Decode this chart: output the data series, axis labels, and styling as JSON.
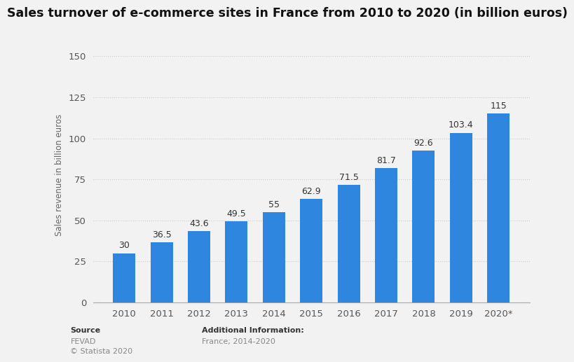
{
  "title": "Sales turnover of e-commerce sites in France from 2010 to 2020 (in billion euros)",
  "ylabel": "Sales revenue in billion euros",
  "categories": [
    "2010",
    "2011",
    "2012",
    "2013",
    "2014",
    "2015",
    "2016",
    "2017",
    "2018",
    "2019",
    "2020*"
  ],
  "values": [
    30,
    36.5,
    43.6,
    49.5,
    55,
    62.9,
    71.5,
    81.7,
    92.6,
    103.4,
    115
  ],
  "bar_color": "#2e86de",
  "background_color": "#f2f2f2",
  "plot_background_color": "#f2f2f2",
  "ylim": [
    0,
    155
  ],
  "yticks": [
    0,
    25,
    50,
    75,
    100,
    125,
    150
  ],
  "grid_color": "#cccccc",
  "title_fontsize": 12.5,
  "label_fontsize": 8.5,
  "tick_fontsize": 9.5,
  "annotation_fontsize": 9,
  "source_line1": "Source",
  "source_line2": "FEVAD",
  "source_line3": "© Statista 2020",
  "additional_line1": "Additional Information:",
  "additional_line2": "France; 2014-2020"
}
